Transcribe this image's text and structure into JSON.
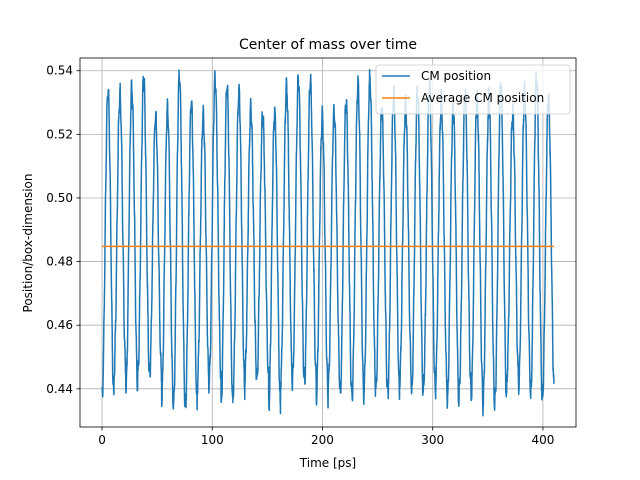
{
  "chart_data": {
    "type": "line",
    "title": "Center of mass over time",
    "xlabel": "Time [ps]",
    "ylabel": "Position/box-dimension",
    "xlim": [
      -20,
      430
    ],
    "ylim": [
      0.428,
      0.544
    ],
    "xticks": [
      0,
      100,
      200,
      300,
      400
    ],
    "yticks": [
      0.44,
      0.46,
      0.48,
      0.5,
      0.52,
      0.54
    ],
    "ytick_labels": [
      "0.44",
      "0.46",
      "0.48",
      "0.50",
      "0.52",
      "0.54"
    ],
    "grid": true,
    "legend_position": "top-right",
    "series": [
      {
        "name": "CM position",
        "color": "#1f77b4",
        "x_range": [
          0,
          410
        ],
        "oscillation": {
          "period_ps": 10.8,
          "peak_range": [
            0.525,
            0.539
          ],
          "trough_range": [
            0.434,
            0.445
          ]
        }
      },
      {
        "name": "Average CM position",
        "color": "#ff7f0e",
        "x": [
          0,
          410
        ],
        "values": [
          0.4848,
          0.4848
        ]
      }
    ]
  }
}
